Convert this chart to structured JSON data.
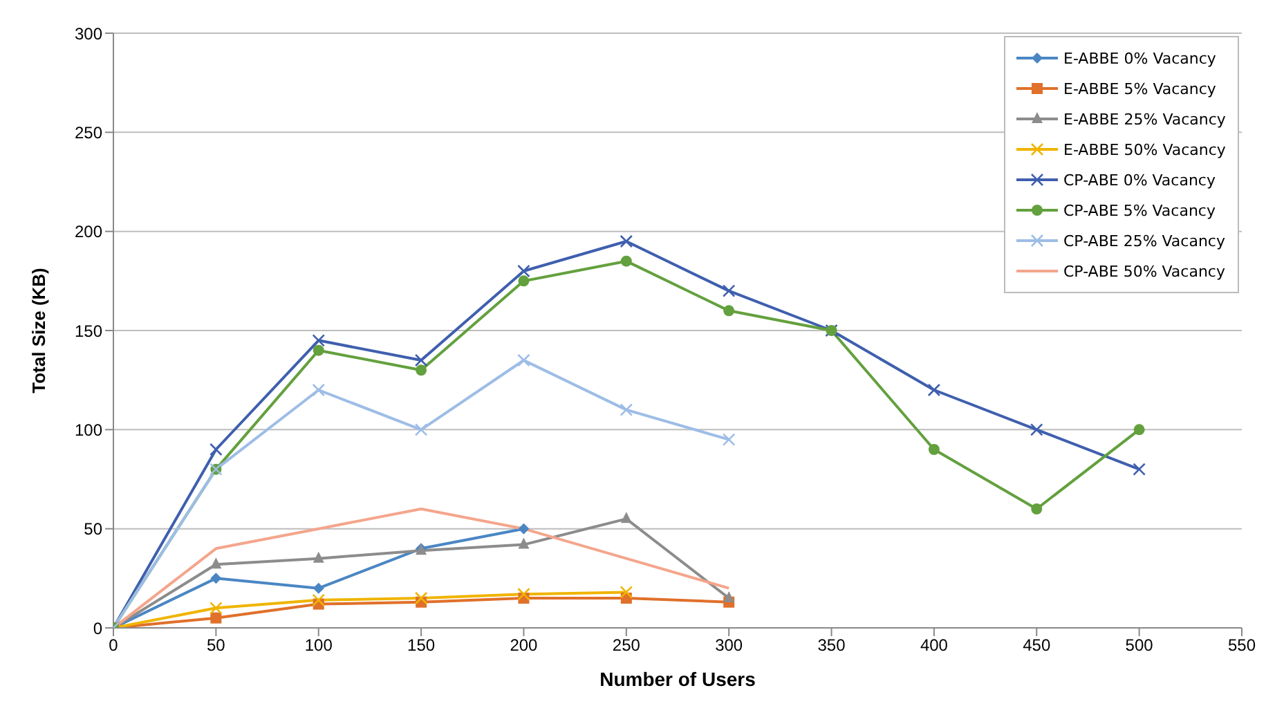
{
  "chart_data": {
    "type": "line",
    "xlabel": "Number of Users",
    "ylabel": "Total Size (KB)",
    "x": [
      0,
      50,
      100,
      150,
      200,
      250,
      300,
      350,
      400,
      450,
      500
    ],
    "xlim": [
      0,
      550
    ],
    "xticks": [
      0,
      50,
      100,
      150,
      200,
      250,
      300,
      350,
      400,
      450,
      500,
      550
    ],
    "ylim": [
      0,
      300
    ],
    "yticks": [
      0,
      50,
      100,
      150,
      200,
      250,
      300
    ],
    "grid": "y",
    "legend": "top right",
    "series": [
      {
        "name": "E-ABBE 0% Vacancy",
        "color": "#4a86c4",
        "marker": "diamond",
        "values": [
          0,
          25,
          20,
          40,
          50,
          null,
          null,
          null,
          null,
          null,
          null
        ]
      },
      {
        "name": "E-ABBE 5% Vacancy",
        "color": "#e0702a",
        "marker": "square",
        "values": [
          0,
          5,
          12,
          13,
          15,
          15,
          13,
          null,
          null,
          null,
          null
        ]
      },
      {
        "name": "E-ABBE 25% Vacancy",
        "color": "#8c8c8c",
        "marker": "triangle",
        "values": [
          0,
          32,
          35,
          39,
          42,
          55,
          15,
          null,
          null,
          null,
          null
        ]
      },
      {
        "name": "E-ABBE 50% Vacancy",
        "color": "#f0b400",
        "marker": "cross",
        "values": [
          0,
          10,
          14,
          15,
          17,
          18,
          null,
          null,
          null,
          null,
          null
        ]
      },
      {
        "name": "CP-ABE 0% Vacancy",
        "color": "#3f5fae",
        "marker": "cross",
        "values": [
          0,
          90,
          145,
          135,
          180,
          195,
          170,
          150,
          120,
          100,
          80
        ]
      },
      {
        "name": "CP-ABE 5% Vacancy",
        "color": "#63a03e",
        "marker": "circle",
        "values": [
          0,
          80,
          140,
          130,
          175,
          185,
          160,
          150,
          90,
          60,
          100
        ]
      },
      {
        "name": "CP-ABE 25% Vacancy",
        "color": "#9dbde6",
        "marker": "cross",
        "values": [
          0,
          80,
          120,
          100,
          135,
          110,
          95,
          null,
          null,
          null,
          null
        ]
      },
      {
        "name": "CP-ABE 50% Vacancy",
        "color": "#f4a58c",
        "marker": "none",
        "values": [
          0,
          40,
          50,
          60,
          50,
          35,
          20,
          null,
          null,
          null,
          null
        ]
      }
    ]
  }
}
